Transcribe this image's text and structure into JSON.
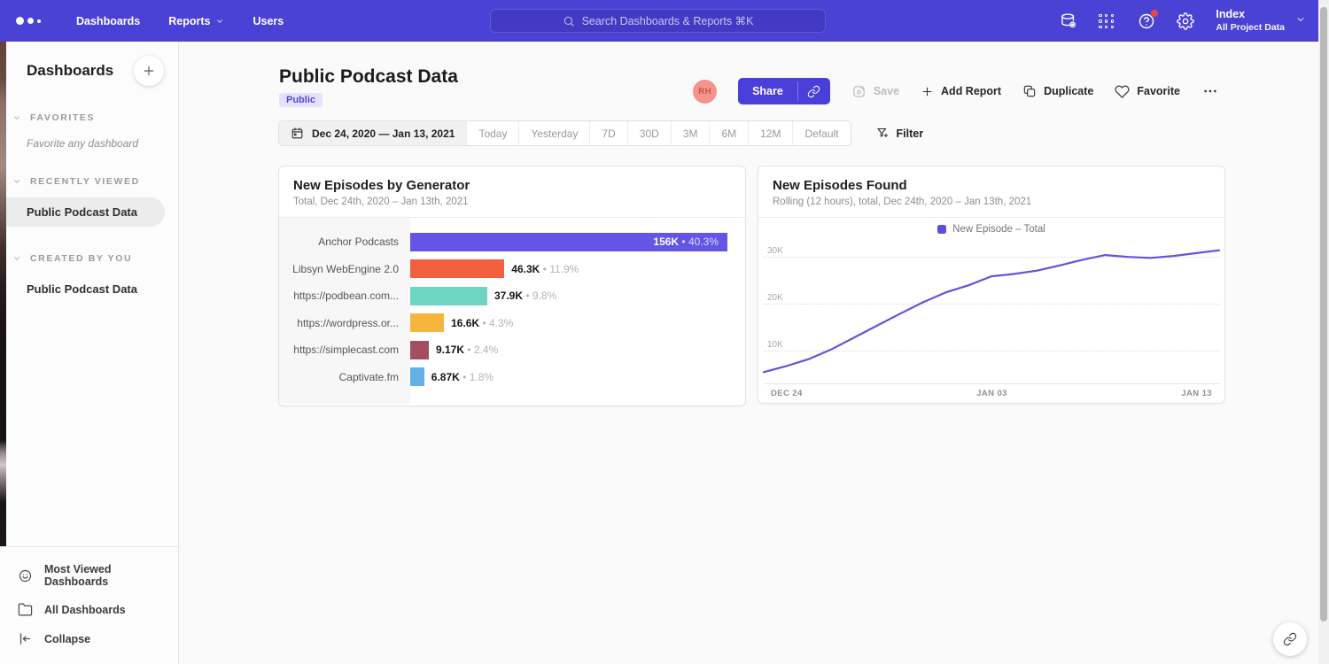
{
  "topbar": {
    "menu": [
      "Dashboards",
      "Reports",
      "Users"
    ],
    "search_placeholder": "Search Dashboards & Reports ⌘K",
    "project_name": "Index",
    "project_scope": "All Project Data",
    "bg_color": "#4a42d4"
  },
  "sidebar": {
    "title": "Dashboards",
    "sections": {
      "favorites": {
        "label": "FAVORITES",
        "empty_text": "Favorite any dashboard"
      },
      "recent": {
        "label": "RECENTLY VIEWED",
        "items": [
          "Public Podcast Data"
        ]
      },
      "created": {
        "label": "CREATED BY YOU",
        "items": [
          "Public Podcast Data"
        ]
      }
    },
    "footer": [
      "Most Viewed Dashboards",
      "All Dashboards",
      "Collapse"
    ]
  },
  "header": {
    "title": "Public Podcast Data",
    "badge": "Public",
    "avatar_initials": "RH",
    "share_label": "Share",
    "save_label": "Save",
    "add_report_label": "Add Report",
    "duplicate_label": "Duplicate",
    "favorite_label": "Favorite"
  },
  "datebar": {
    "range_label": "Dec 24, 2020 — Jan 13, 2021",
    "presets": [
      "Today",
      "Yesterday",
      "7D",
      "30D",
      "3M",
      "6M",
      "12M",
      "Default"
    ],
    "filter_label": "Filter"
  },
  "icons": {
    "logo": "three-dots",
    "search": "magnifier",
    "data": "database-gear",
    "apps": "grid-dots",
    "help": "question-circle-with-badge",
    "settings": "gear",
    "caret": "chevron-down",
    "calendar": "calendar",
    "filter": "funnel-plus",
    "share_link": "chain-link",
    "save": "floppy",
    "add": "plus",
    "duplicate": "copy",
    "favorite": "heart",
    "more": "ellipsis",
    "most_viewed": "smiley-face",
    "all_dashboards": "folder",
    "collapse": "collapse-left",
    "floating": "chain-link"
  },
  "chart_data": [
    {
      "type": "bar",
      "orientation": "horizontal",
      "title": "New Episodes by Generator",
      "subtitle": "Total, Dec 24th, 2020 – Jan 13th, 2021",
      "categories": [
        "Anchor Podcasts",
        "Libsyn WebEngine 2.0",
        "https://podbean.com...",
        "https://wordpress.or...",
        "https://simplecast.com",
        "Captivate.fm"
      ],
      "values": [
        156000,
        46300,
        37900,
        16600,
        9170,
        6870
      ],
      "value_labels": [
        "156K",
        "46.3K",
        "37.9K",
        "16.6K",
        "9.17K",
        "6.87K"
      ],
      "pct_labels": [
        "40.3%",
        "11.9%",
        "9.8%",
        "4.3%",
        "2.4%",
        "1.8%"
      ],
      "colors": [
        "#6355e6",
        "#f2603d",
        "#6cd6c2",
        "#f5b63d",
        "#a54e62",
        "#62b0e8"
      ],
      "xmax": 156000
    },
    {
      "type": "line",
      "title": "New Episodes Found",
      "subtitle": "Rolling (12 hours), total, Dec 24th, 2020 – Jan 13th, 2021",
      "legend": [
        {
          "label": "New Episode – Total",
          "color": "#5b4fe0"
        }
      ],
      "line_color": "#6054e0",
      "x_ticks": [
        "DEC 24",
        "JAN 03",
        "JAN 13"
      ],
      "y_ticks": [
        "30K",
        "20K",
        "10K"
      ],
      "y_gridline_values": [
        30000,
        20000,
        10000
      ],
      "ylim": [
        3500,
        33500
      ],
      "grid": "dotted-horizontal",
      "legend_position": "top-center",
      "x": [
        "Dec 24",
        "Dec 25",
        "Dec 26",
        "Dec 27",
        "Dec 28",
        "Dec 29",
        "Dec 30",
        "Dec 31",
        "Jan 01",
        "Jan 02",
        "Jan 03",
        "Jan 04",
        "Jan 05",
        "Jan 06",
        "Jan 07",
        "Jan 08",
        "Jan 09",
        "Jan 10",
        "Jan 11",
        "Jan 12",
        "Jan 13"
      ],
      "values": [
        5500,
        6800,
        8300,
        10400,
        12900,
        15400,
        17900,
        20300,
        22400,
        23900,
        25800,
        26300,
        27000,
        28100,
        29300,
        30300,
        29900,
        29700,
        30100,
        30700,
        31300
      ]
    }
  ]
}
